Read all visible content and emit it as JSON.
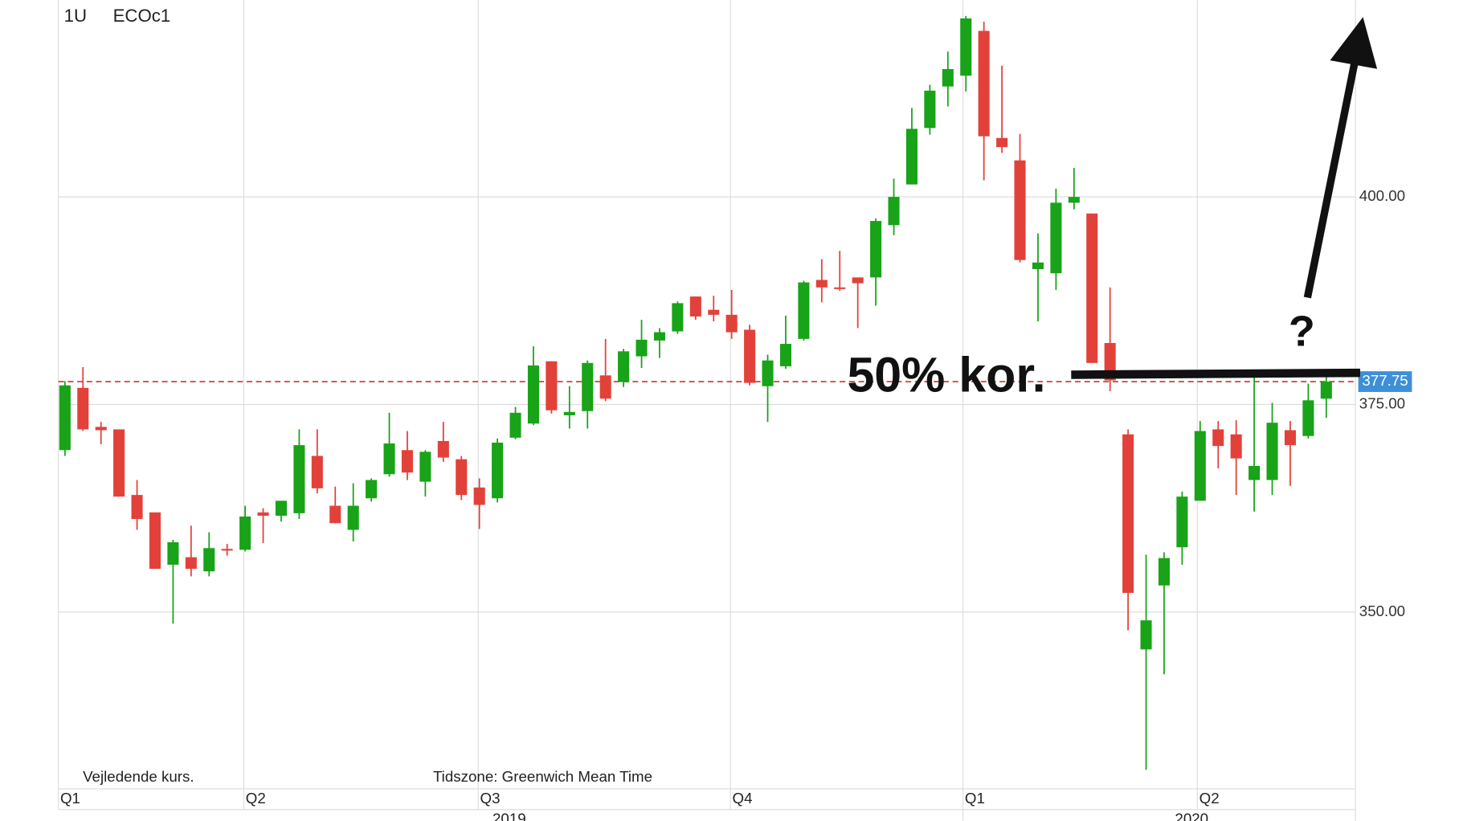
{
  "chart_data": {
    "type": "candlestick",
    "interval": "1U",
    "ticker": "ECOc1",
    "note": "Vejledende kurs.",
    "timezone": "Tidszone: Greenwich Mean Time",
    "annotation": "50% kor.",
    "question": "?",
    "quarters": [
      "Q1",
      "Q2",
      "Q3",
      "Q4",
      "Q1",
      "Q2"
    ],
    "years": [
      "2019",
      "2020"
    ],
    "up_color": "#18a318",
    "down_color": "#e2413a",
    "last_price": 377.75,
    "last_price_color": "#3d8fd8",
    "ylim": [
      328.7,
      423.7
    ],
    "yticks": [
      {
        "value": 350,
        "label": "350.00"
      },
      {
        "value": 375,
        "label": "375.00"
      },
      {
        "value": 400,
        "label": "400.00"
      }
    ],
    "grid": true,
    "open": [
      369.5,
      377.0,
      372.3,
      372.0,
      364.1,
      362.0,
      355.7,
      356.6,
      354.9,
      357.6,
      357.5,
      362.0,
      361.6,
      361.9,
      368.8,
      362.8,
      359.9,
      363.7,
      366.6,
      369.5,
      365.7,
      370.6,
      368.4,
      365.0,
      363.7,
      371.0,
      372.7,
      380.2,
      373.7,
      374.2,
      378.5,
      377.7,
      380.8,
      382.7,
      383.8,
      388.0,
      386.4,
      385.8,
      384.0,
      377.2,
      379.6,
      382.9,
      390.0,
      389.1,
      390.3,
      390.3,
      396.6,
      401.5,
      408.3,
      413.3,
      414.6,
      420.0,
      407.1,
      404.4,
      391.3,
      390.8,
      399.3,
      398.0,
      382.4,
      371.4,
      345.5,
      353.2,
      357.8,
      363.4,
      372.0,
      371.4,
      365.9,
      365.9,
      371.9,
      371.2,
      375.7
    ],
    "high": [
      377.8,
      379.5,
      372.9,
      372.0,
      365.9,
      362.0,
      358.7,
      360.4,
      359.6,
      358.2,
      362.8,
      362.5,
      363.4,
      372.0,
      372.0,
      365.1,
      365.5,
      366.1,
      374.0,
      371.8,
      369.5,
      372.9,
      368.8,
      366.1,
      370.9,
      374.7,
      382.0,
      380.2,
      377.2,
      380.3,
      382.9,
      381.7,
      385.2,
      384.2,
      387.4,
      388.0,
      388.1,
      388.8,
      384.6,
      381.0,
      385.7,
      389.9,
      392.5,
      393.5,
      390.3,
      397.4,
      402.2,
      410.7,
      413.5,
      417.5,
      421.8,
      421.1,
      415.8,
      407.6,
      395.6,
      401.0,
      403.5,
      398.0,
      389.1,
      372.0,
      356.9,
      357.2,
      364.5,
      373.0,
      373.0,
      373.1,
      378.3,
      375.2,
      373.0,
      377.5,
      378.5
    ],
    "low": [
      368.8,
      371.8,
      370.2,
      363.9,
      359.9,
      355.2,
      348.6,
      354.3,
      354.3,
      356.8,
      357.3,
      358.3,
      360.9,
      361.2,
      364.3,
      360.7,
      358.5,
      363.3,
      366.3,
      365.9,
      363.9,
      368.1,
      363.5,
      360.0,
      363.2,
      370.8,
      372.5,
      373.9,
      372.1,
      372.1,
      375.4,
      377.1,
      379.4,
      380.6,
      383.5,
      385.2,
      385.0,
      382.9,
      377.3,
      372.9,
      379.3,
      382.7,
      387.3,
      388.7,
      384.2,
      386.9,
      395.4,
      401.5,
      407.5,
      410.9,
      412.7,
      402.0,
      405.3,
      392.1,
      385.0,
      388.8,
      398.5,
      380.0,
      376.6,
      347.8,
      331.0,
      342.5,
      355.7,
      363.4,
      367.3,
      364.1,
      362.1,
      364.1,
      365.2,
      370.9,
      373.4
    ],
    "close": [
      377.3,
      372.0,
      371.9,
      363.9,
      361.2,
      355.2,
      358.4,
      355.2,
      357.7,
      357.4,
      361.5,
      361.6,
      363.4,
      370.1,
      364.9,
      360.7,
      362.8,
      365.9,
      370.3,
      366.8,
      369.3,
      368.6,
      364.1,
      362.9,
      370.4,
      374.0,
      379.7,
      374.3,
      374.1,
      380.0,
      375.7,
      381.4,
      382.8,
      383.7,
      387.2,
      385.6,
      385.8,
      383.7,
      377.6,
      380.3,
      382.3,
      389.7,
      389.1,
      388.9,
      389.6,
      397.1,
      400.0,
      408.2,
      412.8,
      415.4,
      421.5,
      407.3,
      406.0,
      392.4,
      392.1,
      399.3,
      400.0,
      380.0,
      377.9,
      352.3,
      349.0,
      356.5,
      363.9,
      371.8,
      370.0,
      368.5,
      367.6,
      372.8,
      370.1,
      375.5,
      377.75
    ]
  }
}
